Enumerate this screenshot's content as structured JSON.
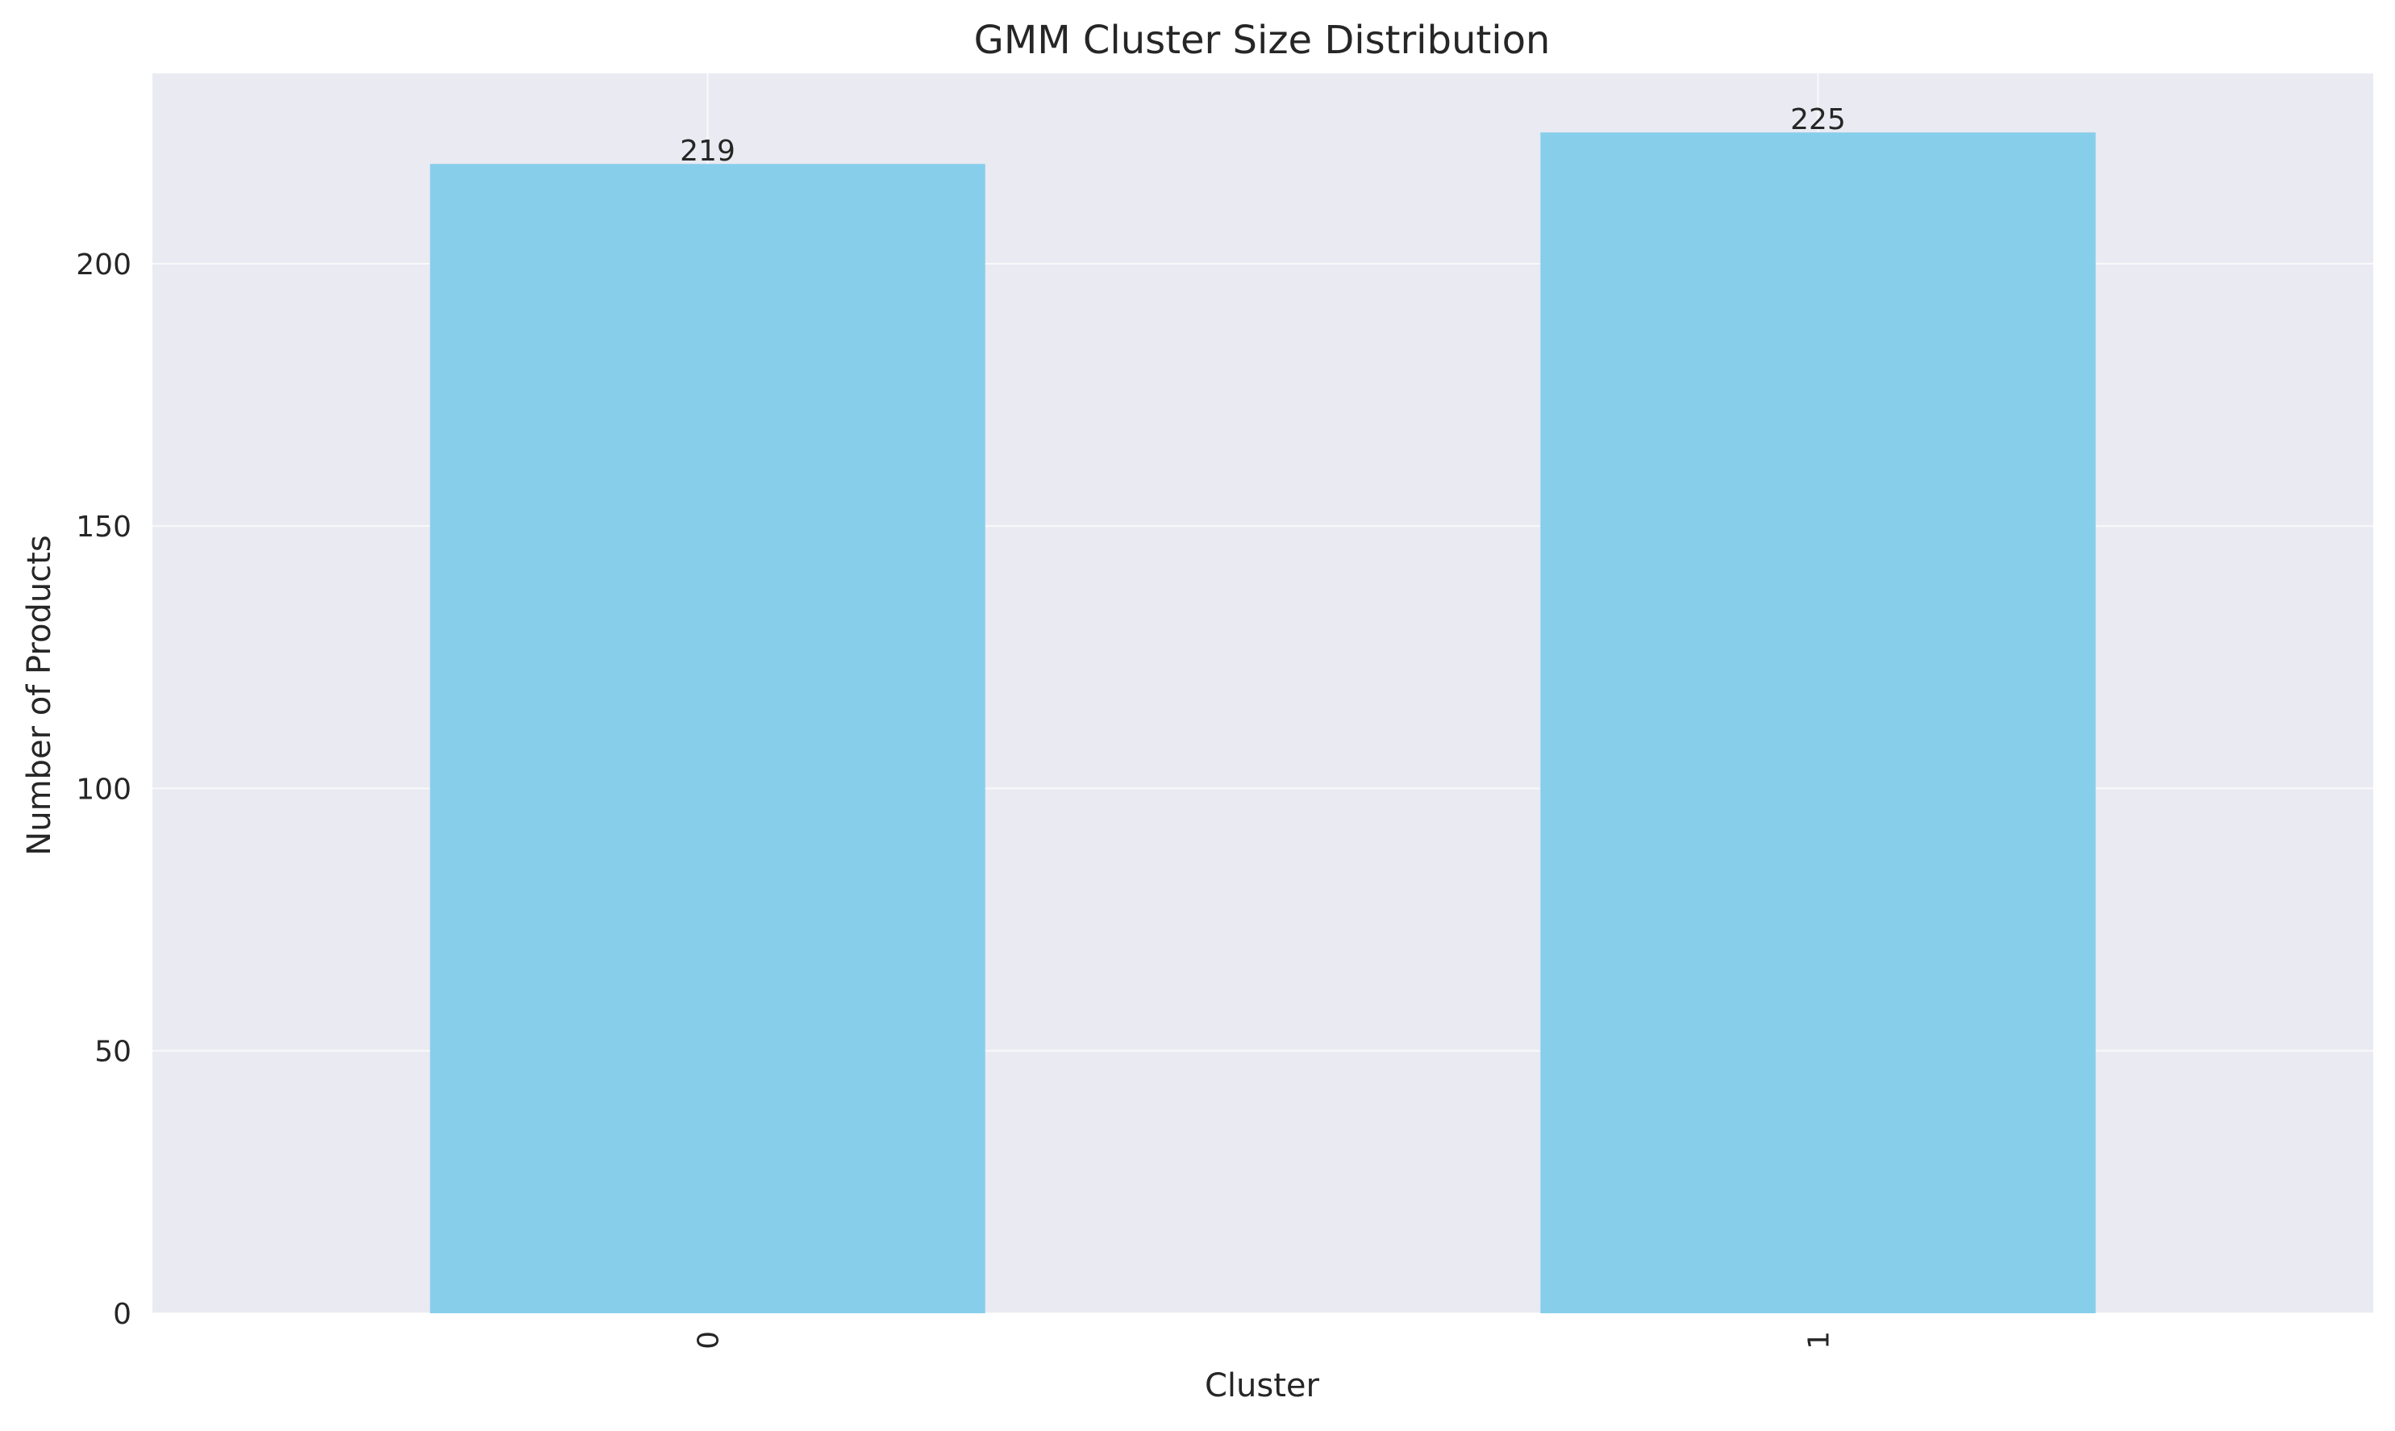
{
  "chart_data": {
    "type": "bar",
    "title": "GMM Cluster Size Distribution",
    "xlabel": "Cluster",
    "ylabel": "Number of Products",
    "categories": [
      "0",
      "1"
    ],
    "values": [
      219,
      225
    ],
    "data_labels": [
      "219",
      "225"
    ],
    "ylim": [
      0,
      236.25
    ],
    "yticks": [
      0,
      50,
      100,
      150,
      200
    ],
    "ytick_labels": [
      "0",
      "50",
      "100",
      "150",
      "200"
    ],
    "xtick_rotation": "vertical",
    "grid": true,
    "legend": "none",
    "colors": {
      "bar": "#87CEEB",
      "plot_background": "#EAEAF2",
      "grid": "#FFFFFF",
      "text": "#262626"
    }
  }
}
